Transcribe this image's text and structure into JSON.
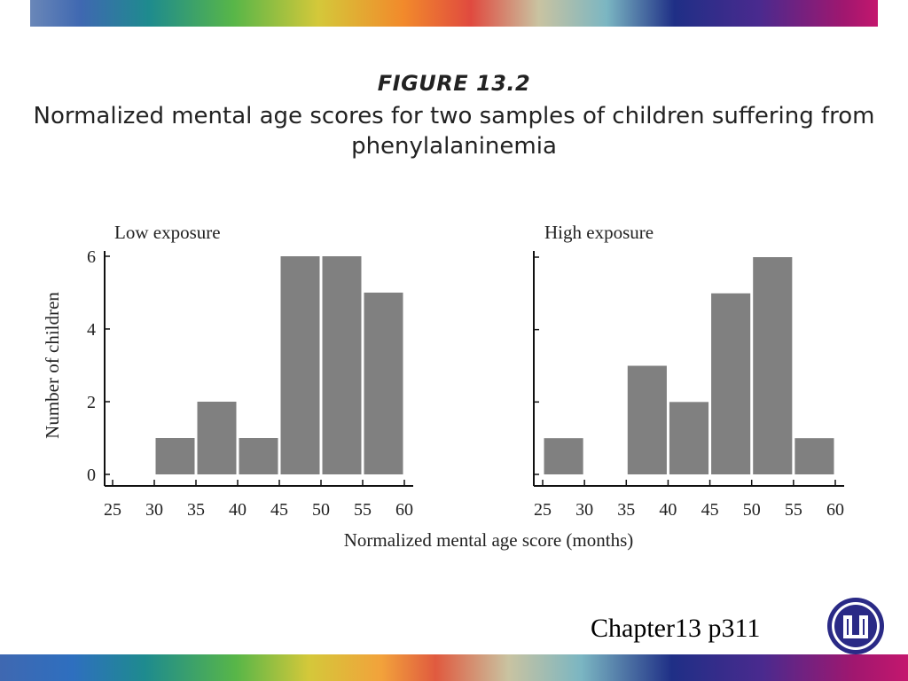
{
  "figure": {
    "label": "FIGURE 13.2",
    "caption": "Normalized mental age scores for two samples of children suffering from phenylalaninemia"
  },
  "chart_data": [
    {
      "type": "bar",
      "title": "Low exposure",
      "xlabel": "Normalized mental age score (months)",
      "ylabel": "Number of children",
      "bins": [
        [
          30,
          35
        ],
        [
          35,
          40
        ],
        [
          40,
          45
        ],
        [
          45,
          50
        ],
        [
          50,
          55
        ],
        [
          55,
          60
        ]
      ],
      "values": [
        1,
        2,
        1,
        6,
        6,
        5
      ],
      "x_ticks": [
        25,
        30,
        35,
        40,
        45,
        50,
        55,
        60
      ],
      "y_ticks": [
        0,
        2,
        4,
        6
      ],
      "xlim": [
        25,
        60
      ],
      "ylim": [
        0,
        6
      ],
      "bar_color": "#808080"
    },
    {
      "type": "bar",
      "title": "High exposure",
      "xlabel": "Normalized mental age score (months)",
      "ylabel": "Number of children",
      "bins": [
        [
          25,
          30
        ],
        [
          35,
          40
        ],
        [
          40,
          45
        ],
        [
          45,
          50
        ],
        [
          50,
          55
        ],
        [
          55,
          60
        ]
      ],
      "values": [
        1,
        3,
        2,
        5,
        6,
        1
      ],
      "x_ticks": [
        25,
        30,
        35,
        40,
        45,
        50,
        55,
        60
      ],
      "y_ticks": [
        0,
        2,
        4,
        6
      ],
      "xlim": [
        25,
        60
      ],
      "ylim": [
        0,
        6
      ],
      "bar_color": "#808080"
    }
  ],
  "footer": {
    "text": "Chapter13 p311"
  },
  "logo": {
    "icon": "university-logo-icon",
    "color": "#2a2a86"
  }
}
